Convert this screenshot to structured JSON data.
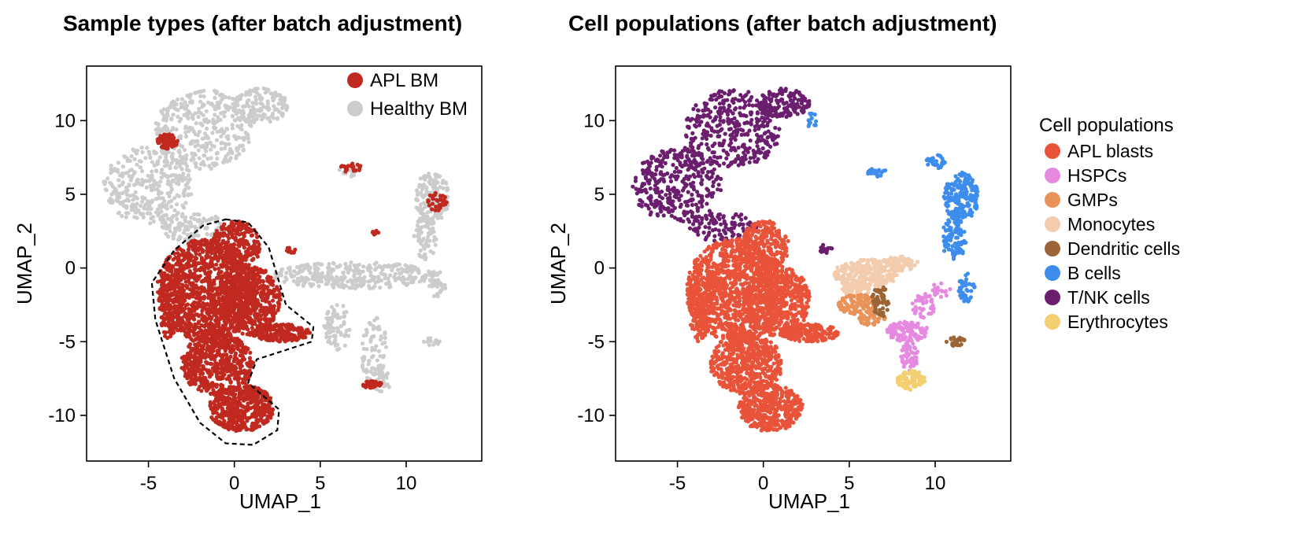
{
  "colors": {
    "apl_bm": "#c0291f",
    "healthy_bm": "#cccccc",
    "apl_blasts": "#e8533a",
    "hspcs": "#e58ae0",
    "gmps": "#e9935a",
    "monocytes": "#f3ccae",
    "dendritic": "#9b6537",
    "b_cells": "#3d8ded",
    "tnk": "#6b1e6d",
    "erythrocytes": "#f3cf72"
  },
  "chart_data": [
    {
      "type": "scatter",
      "title": "Sample types (after batch adjustment)",
      "xlabel": "UMAP_1",
      "ylabel": "UMAP_2",
      "xlim": [
        -8.6,
        14.4
      ],
      "ylim": [
        -13.1,
        13.7
      ],
      "xticks": [
        -5,
        0,
        5,
        10
      ],
      "yticks": [
        -10,
        -5,
        0,
        5,
        10
      ],
      "xtick_labels": [
        "-5",
        "0",
        "5",
        "10"
      ],
      "ytick_labels": [
        "-10",
        "-5",
        "0",
        "5",
        "10"
      ],
      "legend": {
        "position": "top-right",
        "title": "",
        "entries": [
          {
            "label": "APL BM",
            "color_key": "apl_bm"
          },
          {
            "label": "Healthy BM",
            "color_key": "healthy_bm"
          }
        ]
      },
      "annotations": [
        {
          "type": "dashed-outline",
          "around": "APL BM",
          "points": [
            [
              -0.5,
              3.3
            ],
            [
              0.8,
              3.1
            ],
            [
              2.0,
              1.4
            ],
            [
              3.0,
              -2.5
            ],
            [
              4.6,
              -4.0
            ],
            [
              4.5,
              -5.0
            ],
            [
              1.3,
              -6.2
            ],
            [
              0.8,
              -7.8
            ],
            [
              2.6,
              -9.6
            ],
            [
              2.5,
              -11.0
            ],
            [
              1.1,
              -12.0
            ],
            [
              -0.5,
              -11.9
            ],
            [
              -2.0,
              -10.5
            ],
            [
              -3.5,
              -7.5
            ],
            [
              -4.6,
              -3.5
            ],
            [
              -4.8,
              -1.0
            ],
            [
              -3.5,
              1.2
            ],
            [
              -1.8,
              2.9
            ],
            [
              -0.5,
              3.3
            ]
          ]
        }
      ],
      "series": [
        {
          "name": "Healthy BM",
          "color_key": "healthy_bm",
          "regions": [
            {
              "cx": -1.8,
              "cy": 9.4,
              "rx": 2.8,
              "ry": 2.7,
              "n": 360
            },
            {
              "cx": -5.0,
              "cy": 5.6,
              "rx": 2.6,
              "ry": 2.6,
              "n": 330
            },
            {
              "cx": 1.5,
              "cy": 11.0,
              "rx": 1.6,
              "ry": 1.2,
              "n": 150
            },
            {
              "cx": -2.4,
              "cy": 2.8,
              "rx": 2.0,
              "ry": 1.0,
              "n": 110
            },
            {
              "cx": 7.0,
              "cy": -0.5,
              "rx": 4.8,
              "ry": 0.9,
              "n": 340
            },
            {
              "cx": 6.0,
              "cy": -4.0,
              "rx": 0.8,
              "ry": 1.6,
              "n": 70
            },
            {
              "cx": 8.1,
              "cy": -5.5,
              "rx": 0.8,
              "ry": 2.3,
              "n": 70
            },
            {
              "cx": 8.6,
              "cy": -7.5,
              "rx": 0.6,
              "ry": 1.0,
              "n": 30
            },
            {
              "cx": 11.5,
              "cy": 4.8,
              "rx": 1.0,
              "ry": 1.7,
              "n": 150
            },
            {
              "cx": 11.1,
              "cy": 2.0,
              "rx": 0.7,
              "ry": 1.5,
              "n": 70
            },
            {
              "cx": 11.8,
              "cy": -1.2,
              "rx": 0.5,
              "ry": 1.0,
              "n": 30
            },
            {
              "cx": 6.7,
              "cy": 6.5,
              "rx": 0.7,
              "ry": 0.3,
              "n": 12
            },
            {
              "cx": 11.5,
              "cy": -5.0,
              "rx": 0.5,
              "ry": 0.3,
              "n": 12
            }
          ]
        },
        {
          "name": "APL BM",
          "color_key": "apl_bm",
          "regions": [
            {
              "cx": -1.6,
              "cy": -1.5,
              "rx": 2.9,
              "ry": 3.5,
              "n": 1100
            },
            {
              "cx": 0.8,
              "cy": -2.2,
              "rx": 1.9,
              "ry": 2.4,
              "n": 500
            },
            {
              "cx": 0.1,
              "cy": 1.5,
              "rx": 1.4,
              "ry": 1.7,
              "n": 250
            },
            {
              "cx": 2.7,
              "cy": -4.4,
              "rx": 1.7,
              "ry": 0.6,
              "n": 200
            },
            {
              "cx": -1.0,
              "cy": -6.5,
              "rx": 2.1,
              "ry": 2.1,
              "n": 550
            },
            {
              "cx": 0.4,
              "cy": -9.5,
              "rx": 1.9,
              "ry": 1.6,
              "n": 450
            },
            {
              "cx": -3.7,
              "cy": -2.5,
              "rx": 0.7,
              "ry": 2.5,
              "n": 150
            },
            {
              "cx": -3.9,
              "cy": 8.6,
              "rx": 0.6,
              "ry": 0.5,
              "n": 90
            },
            {
              "cx": 8.0,
              "cy": -7.9,
              "rx": 0.6,
              "ry": 0.25,
              "n": 40
            },
            {
              "cx": 6.8,
              "cy": 6.8,
              "rx": 0.7,
              "ry": 0.3,
              "n": 20
            },
            {
              "cx": 11.8,
              "cy": 4.5,
              "rx": 0.6,
              "ry": 0.6,
              "n": 40
            },
            {
              "cx": 3.3,
              "cy": 1.2,
              "rx": 0.4,
              "ry": 0.2,
              "n": 12
            },
            {
              "cx": 8.2,
              "cy": 2.5,
              "rx": 0.2,
              "ry": 0.3,
              "n": 8
            }
          ]
        }
      ]
    },
    {
      "type": "scatter",
      "title": "Cell populations (after batch adjustment)",
      "xlabel": "UMAP_1",
      "ylabel": "UMAP_2",
      "xlim": [
        -8.6,
        14.4
      ],
      "ylim": [
        -13.1,
        13.7
      ],
      "xticks": [
        -5,
        0,
        5,
        10
      ],
      "yticks": [
        -10,
        -5,
        0,
        5,
        10
      ],
      "xtick_labels": [
        "-5",
        "0",
        "5",
        "10"
      ],
      "ytick_labels": [
        "-10",
        "-5",
        "0",
        "5",
        "10"
      ],
      "legend": {
        "position": "right",
        "title": "Cell populations",
        "entries": [
          {
            "label": "APL blasts",
            "color_key": "apl_blasts"
          },
          {
            "label": "HSPCs",
            "color_key": "hspcs"
          },
          {
            "label": "GMPs",
            "color_key": "gmps"
          },
          {
            "label": "Monocytes",
            "color_key": "monocytes"
          },
          {
            "label": "Dendritic cells",
            "color_key": "dendritic"
          },
          {
            "label": "B cells",
            "color_key": "b_cells"
          },
          {
            "label": "T/NK cells",
            "color_key": "tnk"
          },
          {
            "label": "Erythrocytes",
            "color_key": "erythrocytes"
          }
        ]
      },
      "series": [
        {
          "name": "T/NK cells",
          "color_key": "tnk",
          "regions": [
            {
              "cx": -1.8,
              "cy": 9.4,
              "rx": 2.8,
              "ry": 2.7,
              "n": 380
            },
            {
              "cx": -5.0,
              "cy": 5.6,
              "rx": 2.6,
              "ry": 2.6,
              "n": 350
            },
            {
              "cx": 1.2,
              "cy": 11.2,
              "rx": 1.5,
              "ry": 1.0,
              "n": 150
            },
            {
              "cx": -2.4,
              "cy": 2.8,
              "rx": 2.0,
              "ry": 1.0,
              "n": 110
            },
            {
              "cx": 3.6,
              "cy": 1.3,
              "rx": 0.4,
              "ry": 0.3,
              "n": 15
            }
          ]
        },
        {
          "name": "APL blasts",
          "color_key": "apl_blasts",
          "regions": [
            {
              "cx": -1.6,
              "cy": -1.5,
              "rx": 2.9,
              "ry": 3.5,
              "n": 1100
            },
            {
              "cx": 0.8,
              "cy": -2.2,
              "rx": 1.9,
              "ry": 2.4,
              "n": 500
            },
            {
              "cx": 0.1,
              "cy": 1.5,
              "rx": 1.4,
              "ry": 1.7,
              "n": 250
            },
            {
              "cx": 2.7,
              "cy": -4.4,
              "rx": 1.7,
              "ry": 0.6,
              "n": 200
            },
            {
              "cx": -1.0,
              "cy": -6.5,
              "rx": 2.1,
              "ry": 2.1,
              "n": 550
            },
            {
              "cx": 0.4,
              "cy": -9.5,
              "rx": 1.9,
              "ry": 1.6,
              "n": 450
            },
            {
              "cx": -3.7,
              "cy": -2.5,
              "rx": 0.7,
              "ry": 2.5,
              "n": 150
            }
          ]
        },
        {
          "name": "Monocytes",
          "color_key": "monocytes",
          "regions": [
            {
              "cx": 6.0,
              "cy": -0.4,
              "rx": 1.9,
              "ry": 1.0,
              "n": 260
            },
            {
              "cx": 7.9,
              "cy": 0.3,
              "rx": 1.1,
              "ry": 0.5,
              "n": 90
            },
            {
              "cx": 5.4,
              "cy": -1.4,
              "rx": 0.8,
              "ry": 0.6,
              "n": 60
            }
          ]
        },
        {
          "name": "GMPs",
          "color_key": "gmps",
          "regions": [
            {
              "cx": 5.5,
              "cy": -2.5,
              "rx": 1.2,
              "ry": 0.7,
              "n": 110
            },
            {
              "cx": 6.3,
              "cy": -3.4,
              "rx": 0.8,
              "ry": 0.5,
              "n": 50
            }
          ]
        },
        {
          "name": "Dendritic cells",
          "color_key": "dendritic",
          "regions": [
            {
              "cx": 6.8,
              "cy": -2.3,
              "rx": 0.5,
              "ry": 1.1,
              "n": 60
            },
            {
              "cx": 11.2,
              "cy": -5.0,
              "rx": 0.6,
              "ry": 0.3,
              "n": 28
            }
          ]
        },
        {
          "name": "HSPCs",
          "color_key": "hspcs",
          "regions": [
            {
              "cx": 8.4,
              "cy": -4.3,
              "rx": 1.2,
              "ry": 0.7,
              "n": 120
            },
            {
              "cx": 8.5,
              "cy": -6.0,
              "rx": 0.5,
              "ry": 1.0,
              "n": 50
            },
            {
              "cx": 9.3,
              "cy": -2.6,
              "rx": 0.7,
              "ry": 0.9,
              "n": 40
            },
            {
              "cx": 10.3,
              "cy": -1.5,
              "rx": 0.6,
              "ry": 0.5,
              "n": 20
            }
          ]
        },
        {
          "name": "Erythrocytes",
          "color_key": "erythrocytes",
          "regions": [
            {
              "cx": 8.6,
              "cy": -7.6,
              "rx": 0.8,
              "ry": 0.7,
              "n": 90
            }
          ]
        },
        {
          "name": "B cells",
          "color_key": "b_cells",
          "regions": [
            {
              "cx": 11.5,
              "cy": 4.8,
              "rx": 1.0,
              "ry": 1.7,
              "n": 200
            },
            {
              "cx": 11.1,
              "cy": 2.0,
              "rx": 0.7,
              "ry": 1.5,
              "n": 100
            },
            {
              "cx": 11.8,
              "cy": -1.3,
              "rx": 0.5,
              "ry": 1.0,
              "n": 40
            },
            {
              "cx": 10.0,
              "cy": 7.2,
              "rx": 0.6,
              "ry": 0.5,
              "n": 25
            },
            {
              "cx": 6.6,
              "cy": 6.5,
              "rx": 0.6,
              "ry": 0.3,
              "n": 20
            },
            {
              "cx": 2.8,
              "cy": 10.0,
              "rx": 0.3,
              "ry": 0.6,
              "n": 15
            }
          ]
        }
      ]
    }
  ]
}
